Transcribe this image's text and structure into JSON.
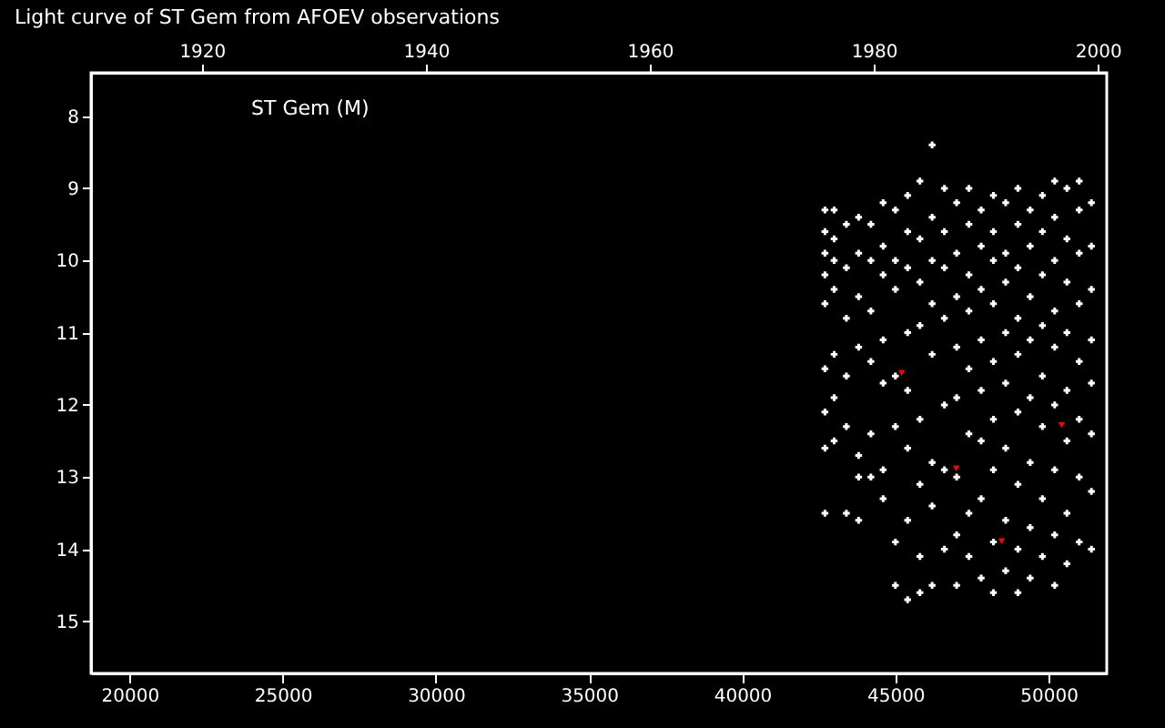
{
  "chart_data": {
    "type": "scatter",
    "title": "Light curve of ST Gem from AFOEV observations",
    "annotations": [
      "ST Gem (M)"
    ],
    "xlim": [
      18740,
      51900
    ],
    "xticks": [
      20000,
      25000,
      30000,
      35000,
      40000,
      45000,
      50000
    ],
    "x2lim": [
      1910.1,
      2000.8
    ],
    "x2ticks": [
      1920,
      1940,
      1960,
      1980,
      2000
    ],
    "ylim": [
      15.72,
      7.4
    ],
    "yticks": [
      8,
      9,
      10,
      11,
      12,
      13,
      14,
      15
    ],
    "grid": false,
    "legend": false,
    "marker": "cross",
    "series": [
      {
        "color": "#ffffff",
        "x": [
          42700,
          42700,
          42700,
          42700,
          42700,
          42700,
          42700,
          42700,
          42700,
          43000,
          43000,
          43000,
          43000,
          43000,
          43000,
          43000,
          43400,
          43400,
          43400,
          43400,
          43400,
          43400,
          43800,
          43800,
          43800,
          43800,
          43800,
          43800,
          43800,
          44200,
          44200,
          44200,
          44200,
          44200,
          44200,
          44600,
          44600,
          44600,
          44600,
          44600,
          44600,
          44600,
          45000,
          45000,
          45000,
          45000,
          45000,
          45000,
          45000,
          45400,
          45400,
          45400,
          45400,
          45400,
          45400,
          45400,
          45400,
          45800,
          45800,
          45800,
          45800,
          45800,
          45800,
          45800,
          45800,
          46200,
          46200,
          46200,
          46200,
          46200,
          46200,
          46200,
          46200,
          46600,
          46600,
          46600,
          46600,
          46600,
          46600,
          46600,
          47000,
          47000,
          47000,
          47000,
          47000,
          47000,
          47000,
          47000,
          47400,
          47400,
          47400,
          47400,
          47400,
          47400,
          47400,
          47400,
          47800,
          47800,
          47800,
          47800,
          47800,
          47800,
          47800,
          47800,
          48200,
          48200,
          48200,
          48200,
          48200,
          48200,
          48200,
          48200,
          48200,
          48600,
          48600,
          48600,
          48600,
          48600,
          48600,
          48600,
          48600,
          49000,
          49000,
          49000,
          49000,
          49000,
          49000,
          49000,
          49000,
          49000,
          49400,
          49400,
          49400,
          49400,
          49400,
          49400,
          49400,
          49400,
          49800,
          49800,
          49800,
          49800,
          49800,
          49800,
          49800,
          49800,
          50200,
          50200,
          50200,
          50200,
          50200,
          50200,
          50200,
          50200,
          50200,
          50600,
          50600,
          50600,
          50600,
          50600,
          50600,
          50600,
          50600,
          51000,
          51000,
          51000,
          51000,
          51000,
          51000,
          51000,
          51000,
          51400,
          51400,
          51400,
          51400,
          51400,
          51400,
          51400,
          51400
        ],
        "values": [
          9.3,
          9.6,
          9.9,
          10.2,
          10.6,
          11.5,
          12.1,
          12.6,
          13.5,
          9.3,
          9.7,
          10.0,
          10.4,
          11.3,
          11.9,
          12.5,
          9.5,
          10.1,
          10.8,
          11.6,
          12.3,
          13.5,
          9.4,
          9.9,
          10.5,
          11.2,
          12.7,
          13.0,
          13.6,
          9.5,
          10.0,
          10.7,
          11.4,
          12.4,
          13.0,
          9.2,
          9.8,
          10.2,
          11.1,
          11.7,
          12.9,
          13.3,
          9.3,
          10.0,
          10.4,
          11.6,
          12.3,
          13.9,
          14.5,
          9.1,
          9.6,
          10.1,
          11.0,
          11.8,
          12.6,
          13.6,
          14.7,
          8.9,
          9.7,
          10.3,
          10.9,
          12.2,
          13.1,
          14.1,
          14.6,
          8.4,
          9.4,
          10.0,
          10.6,
          11.3,
          12.8,
          13.4,
          14.5,
          9.0,
          9.6,
          10.1,
          10.8,
          12.0,
          12.9,
          14.0,
          9.2,
          9.9,
          10.5,
          11.2,
          11.9,
          13.0,
          13.8,
          14.5,
          9.0,
          9.5,
          10.2,
          10.7,
          11.5,
          12.4,
          13.5,
          14.1,
          9.3,
          9.8,
          10.4,
          11.1,
          11.8,
          12.5,
          13.3,
          14.4,
          9.1,
          9.6,
          10.0,
          10.6,
          11.4,
          12.2,
          12.9,
          13.9,
          14.6,
          9.2,
          9.9,
          10.3,
          11.0,
          11.7,
          12.6,
          13.6,
          14.3,
          9.0,
          9.5,
          10.1,
          10.8,
          11.3,
          12.1,
          13.1,
          14.0,
          14.6,
          9.3,
          9.8,
          10.5,
          11.1,
          11.9,
          12.8,
          13.7,
          14.4,
          9.1,
          9.6,
          10.2,
          10.9,
          11.6,
          12.3,
          13.3,
          14.1,
          8.9,
          9.4,
          10.0,
          10.7,
          11.2,
          12.0,
          12.9,
          13.8,
          14.5,
          9.0,
          9.7,
          10.3,
          11.0,
          11.8,
          12.5,
          13.5,
          14.2,
          8.9,
          9.3,
          9.9,
          10.6,
          11.4,
          12.2,
          13.0,
          13.9,
          9.2,
          9.8,
          10.4,
          11.1,
          11.7,
          12.4,
          13.2,
          14.0
        ]
      },
      {
        "color": "#ff0000",
        "marker": "triangle",
        "x": [
          45207,
          46988,
          48473,
          50432
        ],
        "values": [
          11.56,
          12.88,
          13.89,
          12.28
        ]
      }
    ]
  }
}
